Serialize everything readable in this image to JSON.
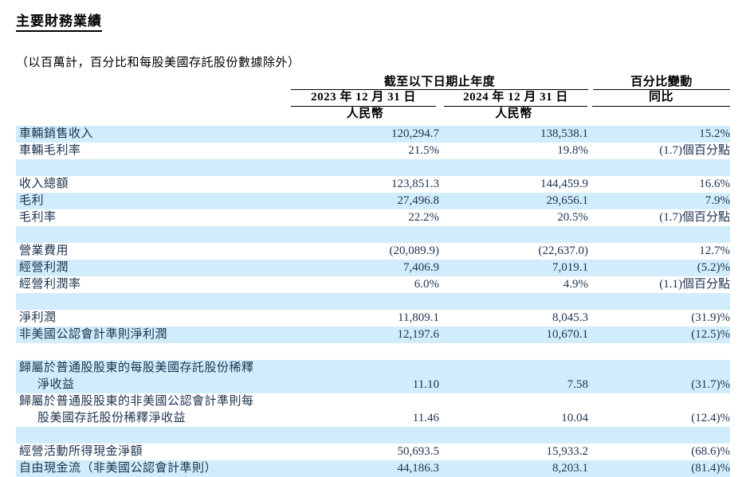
{
  "page": {
    "title": "主要財務業績",
    "subtitle": "（以百萬計，百分比和每股美國存託股份數據除外）"
  },
  "table": {
    "header": {
      "period_group": "截至以下日期止年度",
      "change_group": "百分比變動",
      "col_2023": "2023 年 12 月 31 日",
      "col_2024": "2024 年 12 月 31 日",
      "col_yoy": "同比",
      "currency_2023": "人民幣",
      "currency_2024": "人民幣"
    },
    "rows": [
      {
        "label": "車輛銷售收入",
        "y2023": "120,294.7",
        "y2024": "138,538.1",
        "yoy": "15.2%"
      },
      {
        "label": "車輛毛利率",
        "y2023": "21.5%",
        "y2024": "19.8%",
        "yoy": "(1.7)個百分點"
      },
      {
        "spacer": true
      },
      {
        "label": "收入總額",
        "y2023": "123,851.3",
        "y2024": "144,459.9",
        "yoy": "16.6%"
      },
      {
        "label": "毛利",
        "y2023": "27,496.8",
        "y2024": "29,656.1",
        "yoy": "7.9%"
      },
      {
        "label": "毛利率",
        "y2023": "22.2%",
        "y2024": "20.5%",
        "yoy": "(1.7)個百分點"
      },
      {
        "spacer": true
      },
      {
        "label": "營業費用",
        "y2023": "(20,089.9)",
        "y2024": "(22,637.0)",
        "yoy": "12.7%"
      },
      {
        "label": "經營利潤",
        "y2023": "7,406.9",
        "y2024": "7,019.1",
        "yoy": "(5.2)%"
      },
      {
        "label": "經營利潤率",
        "y2023": "6.0%",
        "y2024": "4.9%",
        "yoy": "(1.1)個百分點"
      },
      {
        "spacer": true
      },
      {
        "label": "淨利潤",
        "y2023": "11,809.1",
        "y2024": "8,045.3",
        "yoy": "(31.9)%"
      },
      {
        "label": "非美國公認會計準則淨利潤",
        "y2023": "12,197.6",
        "y2024": "10,670.1",
        "yoy": "(12.5)%"
      },
      {
        "spacer": true
      },
      {
        "label_line1": "歸屬於普通股股東的每股美國存託股份稀釋",
        "label_line2": "淨收益",
        "y2023": "11.10",
        "y2024": "7.58",
        "yoy": "(31.7)%"
      },
      {
        "label_line1": "歸屬於普通股股東的非美國公認會計準則每",
        "label_line2": "股美國存託股份稀釋淨收益",
        "y2023": "11.46",
        "y2024": "10.04",
        "yoy": "(12.4)%"
      },
      {
        "spacer": true
      },
      {
        "label": "經營活動所得現金淨額",
        "y2023": "50,693.5",
        "y2024": "15,933.2",
        "yoy": "(68.6)%"
      },
      {
        "label": "自由現金流（非美國公認會計準則）",
        "y2023": "44,186.3",
        "y2024": "8,203.1",
        "yoy": "(81.4)%"
      }
    ]
  },
  "colors": {
    "row_highlight": "#d1ecfa",
    "body_text": "#1c3350",
    "header_text": "#000000",
    "rule": "#000000"
  }
}
